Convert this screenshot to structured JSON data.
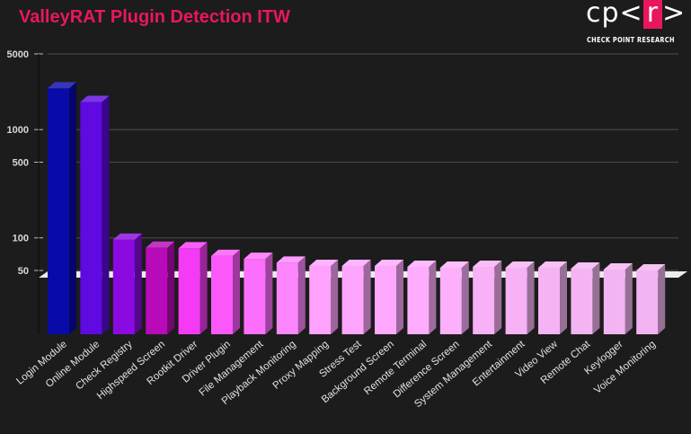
{
  "header": {
    "title": "ValleyRAT Plugin Detection ITW",
    "logo": {
      "prefix": "cp<",
      "boxed": "r",
      "suffix": ">",
      "subtitle": "CHECK POINT RESEARCH"
    }
  },
  "colors": {
    "background": "#1c1c1c",
    "title": "#e8175d",
    "gridline": "#444444",
    "floor": "#ececec"
  },
  "chart_data": {
    "type": "bar",
    "title": "ValleyRAT Plugin Detection ITW",
    "xlabel": "",
    "ylabel": "",
    "yscale": "log",
    "ylim": [
      30,
      5000
    ],
    "yticks": [
      50,
      100,
      500,
      1000,
      5000
    ],
    "grid": true,
    "legend": "none",
    "style": "3d-bars",
    "categories": [
      "Login Module",
      "Online Module",
      "Check Registry",
      "Highspeed Screen",
      "Rootkit Driver",
      "Driver Plugin",
      "File Management",
      "Playback Monitoring",
      "Proxy Mapping",
      "Stress Test",
      "Background Screen",
      "Remote Terminal",
      "Difference Screen",
      "System Management",
      "Entertainment",
      "Video View",
      "Remote Chat",
      "Keylogger",
      "Voice Monitoring"
    ],
    "values": [
      2400,
      1800,
      96,
      81,
      80,
      68,
      64,
      59,
      55,
      55,
      55,
      54,
      53,
      54,
      53,
      53,
      52,
      51,
      50
    ],
    "bar_colors": [
      "#0a0aa8",
      "#5e0ae0",
      "#8a0ae0",
      "#b80ab8",
      "#f53af5",
      "#fb58fb",
      "#fc6efc",
      "#fd86fd",
      "#fea2fe",
      "#fea6fe",
      "#fea8fe",
      "#feacfe",
      "#fcb0fc",
      "#f8b0f6",
      "#f6b2f4",
      "#f5b3f3",
      "#f4b4f2",
      "#f3b4f2",
      "#f2b4f0"
    ]
  }
}
